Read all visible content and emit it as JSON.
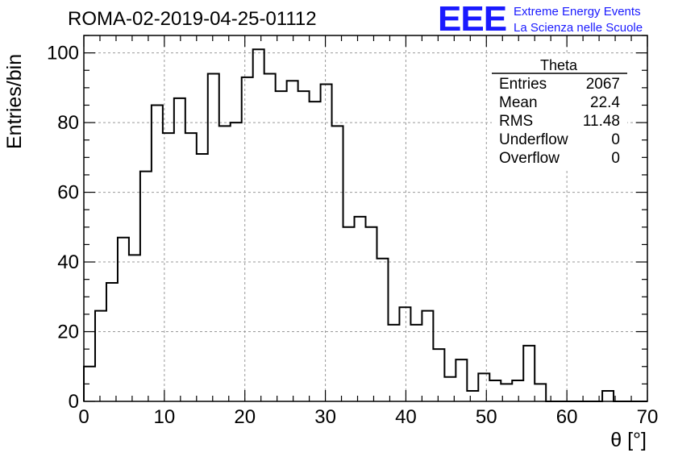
{
  "chart_data": {
    "type": "histogram",
    "title": "ROMA-02-2019-04-25-01112",
    "xlabel": "θ [°]",
    "ylabel": "Entries/bin",
    "xlim": [
      0,
      70
    ],
    "ylim": [
      0,
      105
    ],
    "xticks": [
      "0",
      "10",
      "20",
      "30",
      "40",
      "50",
      "60",
      "70"
    ],
    "yticks": [
      "0",
      "20",
      "40",
      "60",
      "80",
      "100"
    ],
    "grid": true,
    "bin_width": 1.4,
    "bin_start": 0,
    "values": [
      10,
      26,
      34,
      47,
      42,
      66,
      85,
      77,
      87,
      77,
      71,
      94,
      79,
      80,
      93,
      101,
      94,
      89,
      92,
      89,
      86,
      91,
      79,
      50,
      53,
      50,
      41,
      22,
      27,
      22,
      26,
      15,
      7,
      12,
      3,
      8,
      6,
      5,
      6,
      16,
      5,
      0,
      0,
      0,
      0,
      0,
      3,
      0,
      0,
      0
    ],
    "stats_box": {
      "title": "Theta",
      "rows": [
        {
          "label": "Entries",
          "value": "2067"
        },
        {
          "label": "Mean",
          "value": "22.4"
        },
        {
          "label": "RMS",
          "value": "11.48"
        },
        {
          "label": "Underflow",
          "value": "0"
        },
        {
          "label": "Overflow",
          "value": "0"
        }
      ]
    }
  },
  "logo": {
    "mark": "EEE",
    "line1": "Extreme Energy Events",
    "line2": "La Scienza nelle Scuole",
    "color": "#1a1aff"
  }
}
